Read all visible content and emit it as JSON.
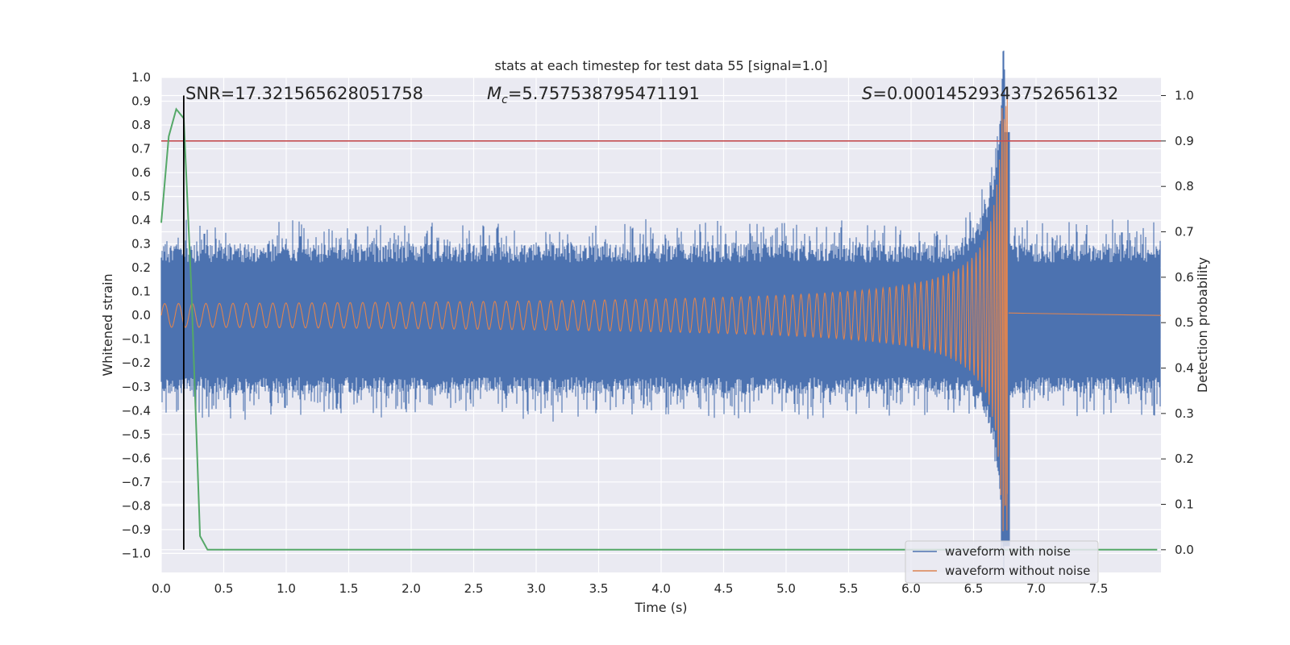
{
  "chart_data": {
    "type": "line",
    "title": "stats at each timestep for test data 55 [signal=1.0]",
    "xlabel": "Time (s)",
    "ylabel_left": "Whitened strain",
    "ylabel_right": "Detection probability",
    "xlim": [
      0.0,
      8.0
    ],
    "ylim_left": [
      -1.08,
      1.0
    ],
    "ylim_right": [
      -0.05,
      1.04
    ],
    "x_ticks": [
      "0.0",
      "0.5",
      "1.0",
      "1.5",
      "2.0",
      "2.5",
      "3.0",
      "3.5",
      "4.0",
      "4.5",
      "5.0",
      "5.5",
      "6.0",
      "6.5",
      "7.0",
      "7.5"
    ],
    "y_ticks_left": [
      "1.0",
      "0.9",
      "0.8",
      "0.7",
      "0.6",
      "0.5",
      "0.4",
      "0.3",
      "0.2",
      "0.1",
      "0.0",
      "−0.1",
      "−0.2",
      "−0.3",
      "−0.4",
      "−0.5",
      "−0.6",
      "−0.7",
      "−0.8",
      "−0.9",
      "−1.0"
    ],
    "y_ticks_right": [
      "1.0",
      "0.9",
      "0.8",
      "0.7",
      "0.6",
      "0.5",
      "0.4",
      "0.3",
      "0.2",
      "0.1",
      "0.0"
    ],
    "grid": true,
    "annotations": {
      "snr": "SNR=17.321565628051758",
      "mc_symbol": "M",
      "mc_sub": "c",
      "mc_value": "=5.757538795471191",
      "s_symbol": "S",
      "s_value": "=0.00014529343752656132"
    },
    "series": [
      {
        "name": "waveform with noise",
        "color": "#4c72b0",
        "axis": "left",
        "noise_envelope": 0.26,
        "spike_range": [
          -0.97,
          0.77
        ]
      },
      {
        "name": "waveform without noise",
        "color": "#dd8452",
        "axis": "left",
        "merger_time": 6.77,
        "start_amplitude": 0.05,
        "peak_amplitude": 0.93
      },
      {
        "name": "detection probability",
        "color": "#55a868",
        "axis": "right",
        "x": [
          0.0,
          0.06,
          0.12,
          0.18,
          0.24,
          0.31,
          0.37,
          0.45,
          7.97
        ],
        "y": [
          0.72,
          0.91,
          0.97,
          0.95,
          0.58,
          0.03,
          0.0,
          0.0,
          0.0
        ]
      }
    ],
    "threshold_line": {
      "value": 0.9,
      "axis": "right",
      "color": "#c44e52"
    },
    "detection_marker": {
      "time": 0.18,
      "color": "#000000"
    },
    "legend": {
      "position": "bottom-right"
    }
  }
}
